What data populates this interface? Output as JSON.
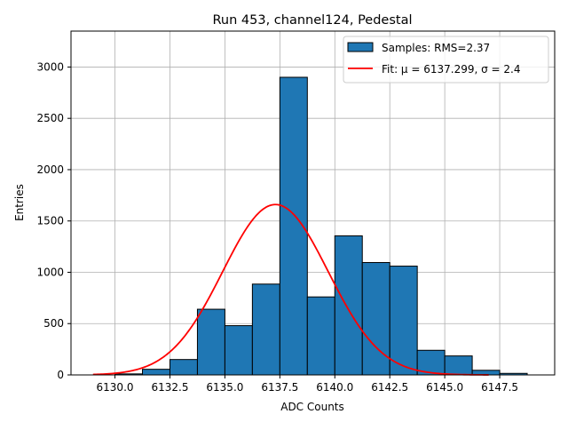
{
  "chart_data": {
    "type": "bar",
    "title": "Run 453, channel124, Pedestal",
    "xlabel": "ADC Counts",
    "ylabel": "Entries",
    "xlim": [
      6128.0,
      6150.0
    ],
    "ylim": [
      0,
      3350
    ],
    "xticks": [
      6130.0,
      6132.5,
      6135.0,
      6137.5,
      6140.0,
      6142.5,
      6145.0,
      6147.5
    ],
    "xtick_labels": [
      "6130.0",
      "6132.5",
      "6135.0",
      "6137.5",
      "6140.0",
      "6142.5",
      "6145.0",
      "6147.5"
    ],
    "yticks": [
      0,
      500,
      1000,
      1500,
      2000,
      2500,
      3000
    ],
    "ytick_labels": [
      "0",
      "500",
      "1000",
      "1500",
      "2000",
      "2500",
      "3000"
    ],
    "grid": true,
    "legend_position": "top-right",
    "histogram": {
      "name": "Samples: RMS=2.37",
      "color": "#1f77b4",
      "edge_color": "#000000",
      "bins": [
        {
          "x0": 6130.0,
          "x1": 6131.25,
          "count": 10
        },
        {
          "x0": 6131.25,
          "x1": 6132.5,
          "count": 55
        },
        {
          "x0": 6132.5,
          "x1": 6133.75,
          "count": 150
        },
        {
          "x0": 6133.75,
          "x1": 6135.0,
          "count": 640
        },
        {
          "x0": 6135.0,
          "x1": 6136.25,
          "count": 480
        },
        {
          "x0": 6136.25,
          "x1": 6137.5,
          "count": 885
        },
        {
          "x0": 6137.5,
          "x1": 6138.75,
          "count": 2900
        },
        {
          "x0": 6138.75,
          "x1": 6140.0,
          "count": 760
        },
        {
          "x0": 6140.0,
          "x1": 6141.25,
          "count": 1355
        },
        {
          "x0": 6141.25,
          "x1": 6142.5,
          "count": 1095
        },
        {
          "x0": 6142.5,
          "x1": 6143.75,
          "count": 1060
        },
        {
          "x0": 6143.75,
          "x1": 6145.0,
          "count": 240
        },
        {
          "x0": 6145.0,
          "x1": 6146.25,
          "count": 185
        },
        {
          "x0": 6146.25,
          "x1": 6147.5,
          "count": 45
        },
        {
          "x0": 6147.5,
          "x1": 6148.75,
          "count": 15
        }
      ]
    },
    "fit": {
      "name": "Fit: μ = 6137.299, σ = 2.4",
      "color": "#ff0000",
      "type": "gaussian",
      "mu": 6137.299,
      "sigma": 2.4,
      "amplitude": 1660,
      "x_range": [
        6129.0,
        6147.0
      ]
    }
  }
}
